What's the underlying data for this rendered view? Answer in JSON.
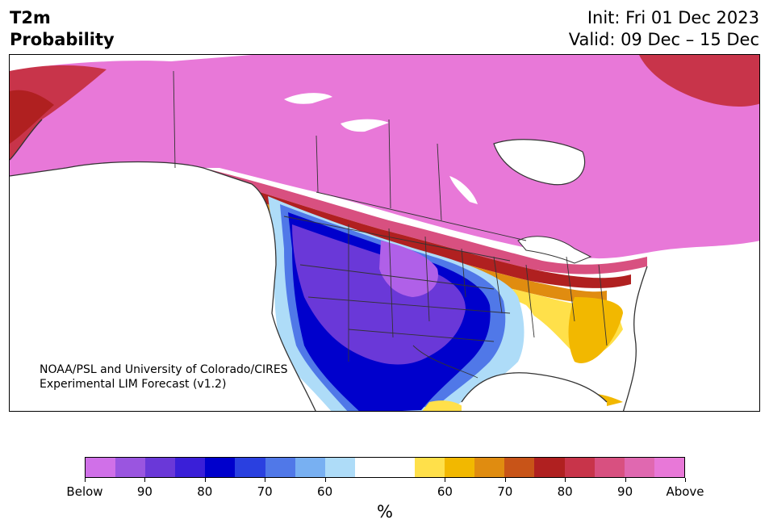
{
  "header": {
    "title_line1": "T2m",
    "title_line2": "Probability",
    "init": "Init: Fri 01 Dec 2023",
    "valid": "Valid: 09 Dec – 15 Dec"
  },
  "credit": {
    "line1": "NOAA/PSL and University of Colorado/CIRES",
    "line2": "Experimental LIM Forecast (v1.2)"
  },
  "colorbar": {
    "colors": [
      "#d070e8",
      "#9a55e0",
      "#6a38d8",
      "#3a1fd8",
      "#0000cc",
      "#2a40e0",
      "#5078e8",
      "#78b0f2",
      "#aedcf8",
      "#ffffff",
      "#ffffff",
      "#ffe04a",
      "#f2b800",
      "#e08c10",
      "#c85418",
      "#b02020",
      "#c8344a",
      "#d85080",
      "#e068b0",
      "#e878d8"
    ],
    "tick_labels": [
      "Below",
      "90",
      "80",
      "70",
      "60",
      "60",
      "70",
      "80",
      "90",
      "Above"
    ],
    "unit": "%"
  },
  "map_colors": {
    "above_high": "#e878d8",
    "above_mid": "#d85080",
    "above_red": "#b02020",
    "above_orange": "#e08c10",
    "above_yellow": "#ffe04a",
    "below_light": "#aedcf8",
    "below_mid": "#5078e8",
    "below_deep": "#0000cc",
    "below_purple": "#6a38d8",
    "below_lav": "#b060e8",
    "ocean": "#ffffff",
    "border": "#333333"
  }
}
